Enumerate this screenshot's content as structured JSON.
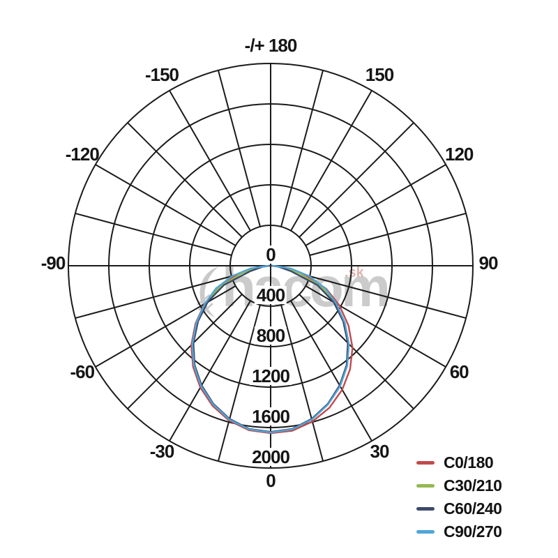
{
  "watermark": {
    "text": "hacom",
    "suffix": ".sk"
  },
  "chart_data": {
    "type": "line",
    "subtype": "polar-photometric",
    "title": "",
    "grid": true,
    "radial_ticks": [
      0,
      400,
      800,
      1200,
      1600,
      2000
    ],
    "radial_tick_labels": [
      "0",
      "400",
      "800",
      "1200",
      "1600",
      "2000"
    ],
    "radial_max": 2000,
    "angle_grid_step_deg": 15,
    "angle_labels": [
      {
        "deg": 180,
        "label": "-/+ 180"
      },
      {
        "deg": -150,
        "label": "-150"
      },
      {
        "deg": 150,
        "label": "150"
      },
      {
        "deg": -120,
        "label": "-120"
      },
      {
        "deg": 120,
        "label": "120"
      },
      {
        "deg": -90,
        "label": "-90"
      },
      {
        "deg": 90,
        "label": "90"
      },
      {
        "deg": -60,
        "label": "-60"
      },
      {
        "deg": 60,
        "label": "60"
      },
      {
        "deg": -30,
        "label": "-30"
      },
      {
        "deg": 30,
        "label": "30"
      },
      {
        "deg": 0,
        "label": "0"
      }
    ],
    "series_angle_start_deg": -90,
    "series_angle_step_deg": 7.5,
    "legend_position": "bottom-right",
    "series": [
      {
        "name": "C0/180",
        "color": "#bf4a4c",
        "values": [
          20,
          150,
          345,
          570,
          755,
          935,
          1110,
          1260,
          1390,
          1500,
          1585,
          1640,
          1655,
          1645,
          1595,
          1520,
          1415,
          1290,
          1145,
          970,
          785,
          595,
          360,
          155,
          20
        ]
      },
      {
        "name": "C30/210",
        "color": "#96b852",
        "values": [
          15,
          140,
          300,
          545,
          735,
          915,
          1090,
          1240,
          1370,
          1480,
          1570,
          1630,
          1645,
          1630,
          1570,
          1480,
          1370,
          1240,
          1090,
          915,
          735,
          545,
          300,
          140,
          15
        ]
      },
      {
        "name": "C60/240",
        "color": "#3e4a68",
        "values": [
          10,
          80,
          210,
          500,
          720,
          905,
          1080,
          1235,
          1365,
          1478,
          1568,
          1628,
          1643,
          1628,
          1568,
          1478,
          1365,
          1235,
          1080,
          905,
          720,
          500,
          210,
          80,
          10
        ]
      },
      {
        "name": "C90/270",
        "color": "#4fa5d8",
        "values": [
          25,
          200,
          395,
          585,
          750,
          925,
          1095,
          1245,
          1375,
          1485,
          1575,
          1632,
          1648,
          1632,
          1575,
          1485,
          1375,
          1245,
          1095,
          925,
          750,
          585,
          395,
          200,
          25
        ]
      }
    ]
  }
}
